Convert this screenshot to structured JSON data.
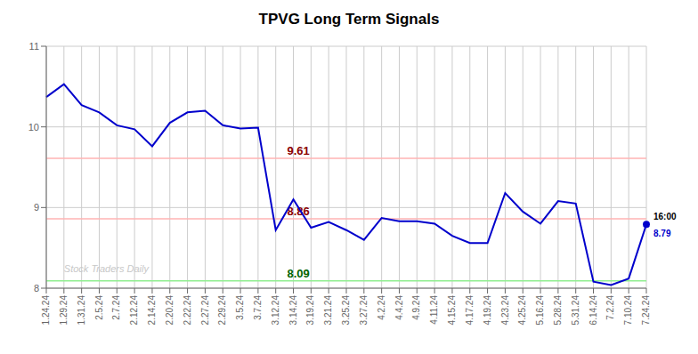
{
  "chart_data": {
    "type": "line",
    "title": "TPVG Long Term Signals",
    "categories": [
      "1.24.24",
      "1.29.24",
      "1.31.24",
      "2.5.24",
      "2.7.24",
      "2.12.24",
      "2.14.24",
      "2.20.24",
      "2.22.24",
      "2.27.24",
      "2.29.24",
      "3.5.24",
      "3.7.24",
      "3.12.24",
      "3.14.24",
      "3.19.24",
      "3.21.24",
      "3.25.24",
      "3.27.24",
      "4.2.24",
      "4.4.24",
      "4.9.24",
      "4.11.24",
      "4.15.24",
      "4.17.24",
      "4.19.24",
      "4.23.24",
      "4.25.24",
      "5.16.24",
      "5.28.24",
      "5.31.24",
      "6.14.24",
      "7.2.24",
      "7.10.24",
      "7.24.24"
    ],
    "values": [
      10.37,
      10.53,
      10.27,
      10.18,
      10.02,
      9.97,
      9.76,
      10.05,
      10.18,
      10.2,
      10.02,
      9.98,
      9.99,
      8.72,
      9.1,
      8.75,
      8.82,
      8.72,
      8.6,
      8.87,
      8.83,
      8.83,
      8.8,
      8.65,
      8.56,
      8.56,
      9.18,
      8.95,
      8.8,
      9.08,
      9.05,
      8.08,
      8.04,
      8.12,
      8.79
    ],
    "color": "#0000cc",
    "ylim": [
      8.0,
      11.0
    ],
    "yticks": [
      8,
      9,
      10,
      11
    ],
    "grid": true,
    "reference_lines": [
      {
        "value": 9.61,
        "label": "9.61",
        "color": "#ffb3b3",
        "label_color": "#8b0000"
      },
      {
        "value": 8.86,
        "label": "8.86",
        "color": "#ffb3b3",
        "label_color": "#8b0000"
      },
      {
        "value": 8.09,
        "label": "8.09",
        "color": "#90ee90",
        "label_color": "#006400"
      }
    ],
    "annotations": [
      {
        "text": "Stock Traders Daily",
        "color": "#c8c8c8"
      },
      {
        "text": "16:00",
        "color": "#000000"
      },
      {
        "text": "8.79",
        "color": "#0000cc"
      }
    ]
  }
}
